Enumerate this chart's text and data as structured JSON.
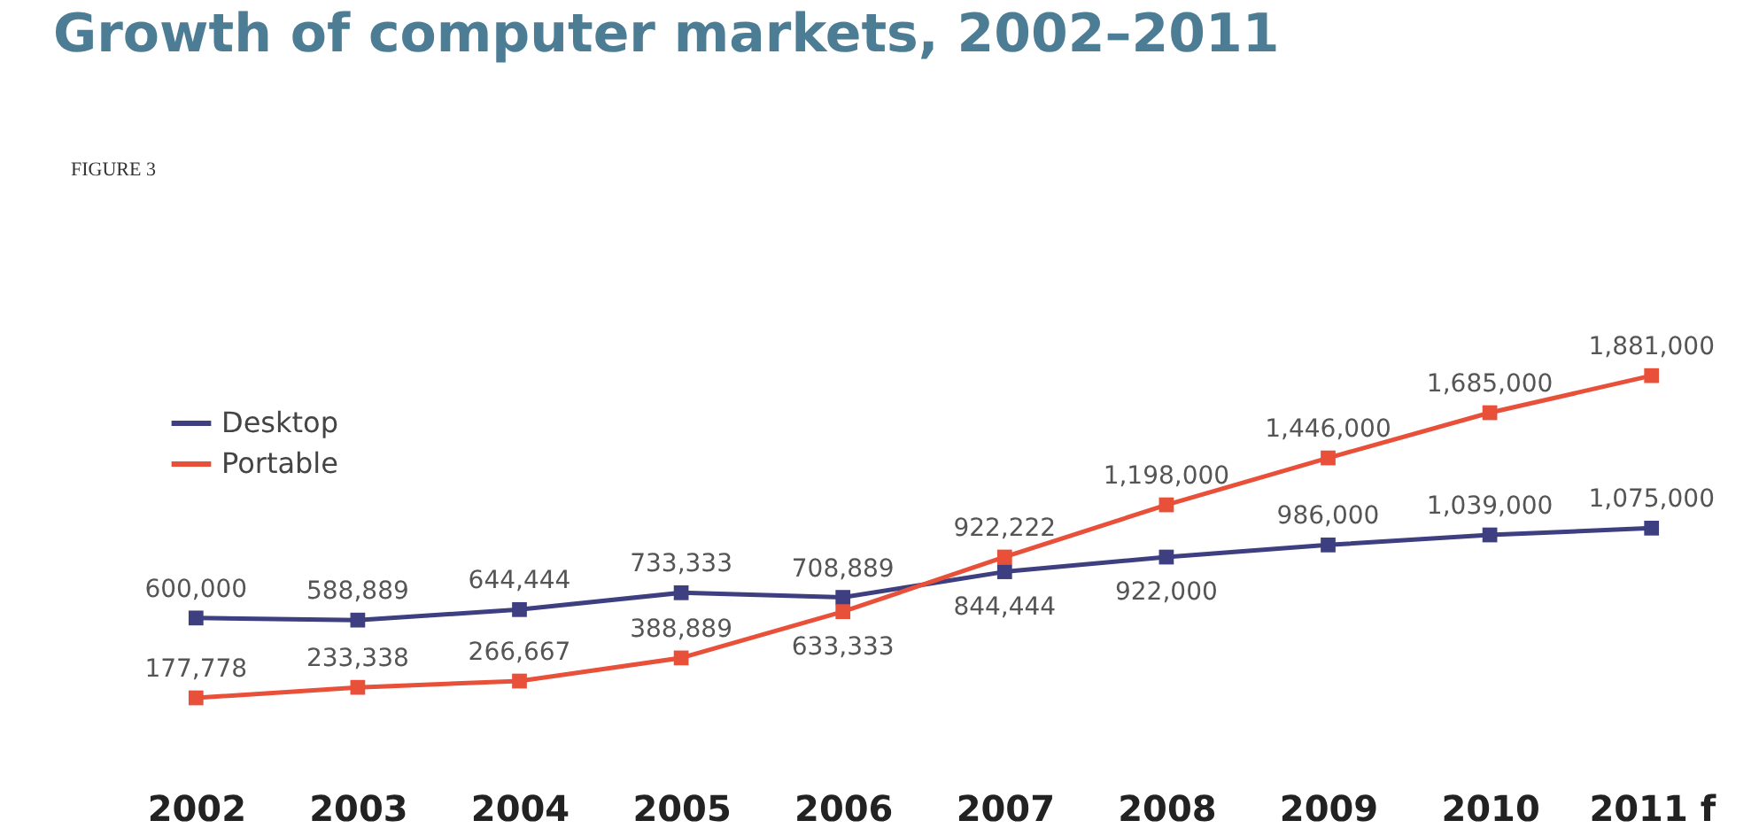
{
  "chart_data": {
    "type": "line",
    "title": "Growth of computer markets, 2002–2011",
    "annotations": [
      "FIGURE 3"
    ],
    "categories": [
      "2002",
      "2003",
      "2004",
      "2005",
      "2006",
      "2007",
      "2008",
      "2009",
      "2010",
      "2011 f"
    ],
    "series": [
      {
        "name": "Desktop",
        "color": "#3d3f80",
        "values": [
          600000,
          588889,
          644444,
          733333,
          708889,
          844444,
          922000,
          986000,
          1039000,
          1075000
        ],
        "value_labels": [
          "600,000",
          "588,889",
          "644,444",
          "733,333",
          "708,889",
          "844,444",
          "922,000",
          "986,000",
          "1,039,000",
          "1,075,000"
        ]
      },
      {
        "name": "Portable",
        "color": "#e8503a",
        "values": [
          177778,
          233338,
          266667,
          388889,
          633333,
          922222,
          1198000,
          1446000,
          1685000,
          1881000
        ],
        "value_labels": [
          "177,778",
          "233,338",
          "266,667",
          "388,889",
          "633,333",
          "922,222",
          "1,198,000",
          "1,446,000",
          "1,685,000",
          "1,881,000"
        ]
      }
    ],
    "marker": "square",
    "line_style": "solid",
    "legend": "top left",
    "grid": false
  }
}
